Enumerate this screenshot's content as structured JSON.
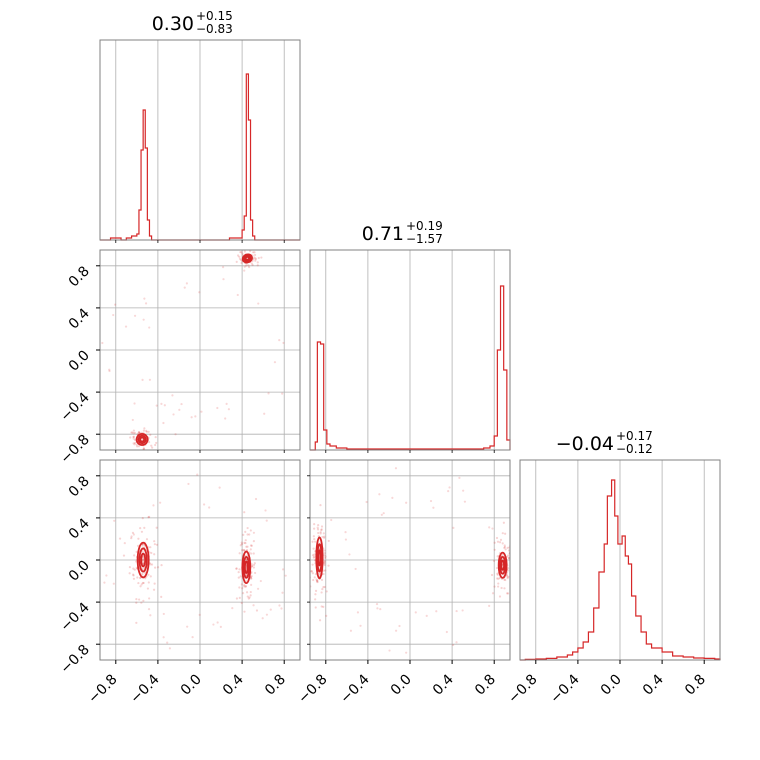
{
  "chart_data": {
    "type": "corner",
    "color": "#d62728",
    "axis_range": [
      -0.95,
      0.95
    ],
    "tick_values": [
      -0.8,
      -0.4,
      0.0,
      0.4,
      0.8
    ],
    "tick_labels": [
      "−0.8",
      "−0.4",
      "0.0",
      "0.4",
      "0.8"
    ],
    "grid": true,
    "parameters": [
      {
        "title": {
          "median": "0.30",
          "plus": "+0.15",
          "minus": "−0.83"
        },
        "histogram": {
          "bins": [
            [
              -0.95,
              0.0
            ],
            [
              -0.9,
              0.0
            ],
            [
              -0.85,
              0.01
            ],
            [
              -0.8,
              0.01
            ],
            [
              -0.75,
              0.0
            ],
            [
              -0.7,
              0.01
            ],
            [
              -0.65,
              0.02
            ],
            [
              -0.6,
              0.03
            ],
            [
              -0.58,
              0.15
            ],
            [
              -0.56,
              0.45
            ],
            [
              -0.54,
              0.65
            ],
            [
              -0.52,
              0.46
            ],
            [
              -0.5,
              0.1
            ],
            [
              -0.48,
              0.02
            ],
            [
              -0.46,
              0.0
            ],
            [
              -0.4,
              0.0
            ],
            [
              -0.2,
              0.0
            ],
            [
              0.0,
              0.0
            ],
            [
              0.2,
              0.0
            ],
            [
              0.28,
              0.01
            ],
            [
              0.34,
              0.01
            ],
            [
              0.4,
              0.05
            ],
            [
              0.42,
              0.12
            ],
            [
              0.44,
              0.83
            ],
            [
              0.46,
              0.6
            ],
            [
              0.48,
              0.1
            ],
            [
              0.5,
              0.02
            ],
            [
              0.52,
              0.0
            ],
            [
              0.6,
              0.0
            ],
            [
              0.8,
              0.0
            ],
            [
              0.95,
              0.0
            ]
          ]
        }
      },
      {
        "title": {
          "median": "0.71",
          "plus": "+0.19",
          "minus": "−1.57"
        },
        "histogram": {
          "bins": [
            [
              -0.95,
              0.0
            ],
            [
              -0.9,
              0.04
            ],
            [
              -0.88,
              0.54
            ],
            [
              -0.85,
              0.53
            ],
            [
              -0.82,
              0.1
            ],
            [
              -0.79,
              0.03
            ],
            [
              -0.76,
              0.02
            ],
            [
              -0.7,
              0.01
            ],
            [
              -0.6,
              0.005
            ],
            [
              -0.4,
              0.005
            ],
            [
              -0.2,
              0.005
            ],
            [
              0.0,
              0.005
            ],
            [
              0.2,
              0.005
            ],
            [
              0.4,
              0.005
            ],
            [
              0.6,
              0.005
            ],
            [
              0.7,
              0.01
            ],
            [
              0.76,
              0.02
            ],
            [
              0.8,
              0.07
            ],
            [
              0.83,
              0.5
            ],
            [
              0.86,
              0.82
            ],
            [
              0.89,
              0.4
            ],
            [
              0.92,
              0.05
            ],
            [
              0.95,
              0.0
            ]
          ]
        }
      },
      {
        "title": {
          "median": "−0.04",
          "plus": "+0.17",
          "minus": "−0.12"
        },
        "histogram": {
          "bins": [
            [
              -0.95,
              0.0
            ],
            [
              -0.9,
              0.003
            ],
            [
              -0.8,
              0.005
            ],
            [
              -0.7,
              0.008
            ],
            [
              -0.6,
              0.015
            ],
            [
              -0.5,
              0.025
            ],
            [
              -0.45,
              0.04
            ],
            [
              -0.4,
              0.06
            ],
            [
              -0.35,
              0.09
            ],
            [
              -0.3,
              0.14
            ],
            [
              -0.25,
              0.26
            ],
            [
              -0.2,
              0.44
            ],
            [
              -0.15,
              0.58
            ],
            [
              -0.12,
              0.82
            ],
            [
              -0.08,
              0.9
            ],
            [
              -0.05,
              0.72
            ],
            [
              -0.02,
              0.58
            ],
            [
              0.02,
              0.62
            ],
            [
              0.05,
              0.52
            ],
            [
              0.08,
              0.48
            ],
            [
              0.11,
              0.32
            ],
            [
              0.15,
              0.22
            ],
            [
              0.2,
              0.14
            ],
            [
              0.25,
              0.08
            ],
            [
              0.3,
              0.06
            ],
            [
              0.4,
              0.04
            ],
            [
              0.5,
              0.02
            ],
            [
              0.6,
              0.015
            ],
            [
              0.7,
              0.01
            ],
            [
              0.8,
              0.008
            ],
            [
              0.9,
              0.005
            ],
            [
              0.95,
              0.0
            ]
          ]
        }
      }
    ],
    "pairs": [
      {
        "x_param": 0,
        "y_param": 1,
        "clusters": [
          {
            "cx": 0.45,
            "cy": 0.87,
            "sx": 0.03,
            "sy": 0.025,
            "tilt": -0.4,
            "n": 60
          },
          {
            "cx": -0.55,
            "cy": -0.85,
            "sx": 0.035,
            "sy": 0.035,
            "tilt": -0.6,
            "n": 70
          }
        ]
      },
      {
        "x_param": 0,
        "y_param": 2,
        "clusters": [
          {
            "cx": -0.54,
            "cy": 0.0,
            "sx": 0.035,
            "sy": 0.11,
            "tilt": 0.0,
            "n": 110
          },
          {
            "cx": 0.44,
            "cy": -0.07,
            "sx": 0.025,
            "sy": 0.1,
            "tilt": 0.0,
            "n": 110
          }
        ]
      },
      {
        "x_param": 1,
        "y_param": 2,
        "clusters": [
          {
            "cx": -0.86,
            "cy": 0.02,
            "sx": 0.02,
            "sy": 0.13,
            "tilt": 0.0,
            "n": 110
          },
          {
            "cx": 0.88,
            "cy": -0.05,
            "sx": 0.025,
            "sy": 0.08,
            "tilt": 0.0,
            "n": 110
          }
        ]
      }
    ]
  }
}
